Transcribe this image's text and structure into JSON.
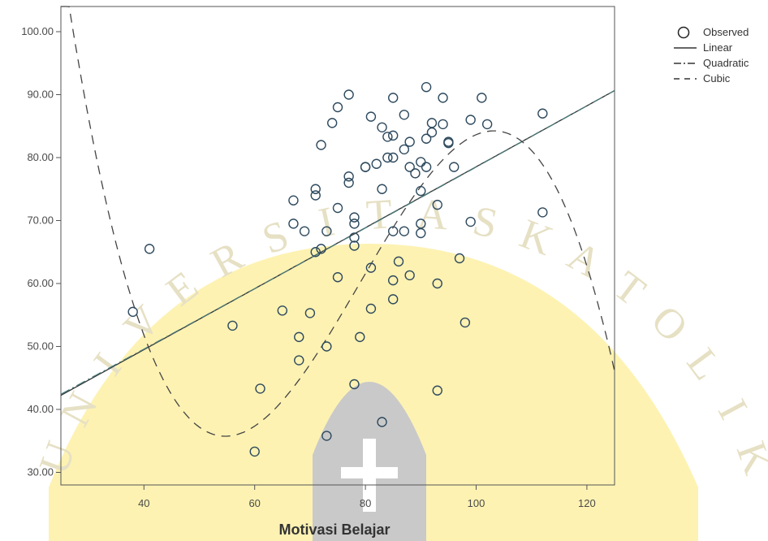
{
  "chart_data": {
    "type": "scatter",
    "xlabel": "Motivasi Belajar",
    "ylabel": "",
    "xlim": [
      25,
      125
    ],
    "ylim": [
      28,
      104
    ],
    "x_ticks": [
      "40",
      "60",
      "80",
      "100",
      "120"
    ],
    "x_tick_values": [
      40,
      60,
      80,
      100,
      120
    ],
    "y_ticks": [
      "30.00",
      "40.00",
      "50.00",
      "60.00",
      "70.00",
      "80.00",
      "90.00",
      "100.00"
    ],
    "y_tick_values": [
      30,
      40,
      50,
      60,
      70,
      80,
      90,
      100
    ],
    "grid": false,
    "legend_position": "top-right outside",
    "legend": [
      {
        "label": "Observed",
        "style": "circle"
      },
      {
        "label": "Linear",
        "style": "solid"
      },
      {
        "label": "Quadratic",
        "style": "dash-dot"
      },
      {
        "label": "Cubic",
        "style": "dashed"
      }
    ],
    "series": [
      {
        "name": "Observed",
        "kind": "points",
        "points": [
          [
            38,
            55.5
          ],
          [
            41,
            65.5
          ],
          [
            56,
            53.3
          ],
          [
            60,
            33.3
          ],
          [
            61,
            43.3
          ],
          [
            65,
            55.7
          ],
          [
            67,
            69.5
          ],
          [
            67,
            73.2
          ],
          [
            68,
            51.5
          ],
          [
            68,
            47.8
          ],
          [
            69,
            68.3
          ],
          [
            70,
            55.3
          ],
          [
            71,
            65
          ],
          [
            71,
            74
          ],
          [
            71,
            75
          ],
          [
            72,
            65.5
          ],
          [
            72,
            82
          ],
          [
            73,
            68.3
          ],
          [
            73,
            50
          ],
          [
            73,
            35.8
          ],
          [
            74,
            85.5
          ],
          [
            75,
            72
          ],
          [
            75,
            61
          ],
          [
            75,
            88
          ],
          [
            77,
            90
          ],
          [
            77,
            76
          ],
          [
            77,
            77
          ],
          [
            78,
            70.5
          ],
          [
            78,
            69.5
          ],
          [
            78,
            67.3
          ],
          [
            78,
            66
          ],
          [
            78,
            44
          ],
          [
            79,
            51.5
          ],
          [
            80,
            78.5
          ],
          [
            80,
            78.5
          ],
          [
            81,
            86.5
          ],
          [
            81,
            62.5
          ],
          [
            81,
            56
          ],
          [
            82,
            79
          ],
          [
            83,
            84.8
          ],
          [
            83,
            75
          ],
          [
            83,
            38
          ],
          [
            84,
            83.3
          ],
          [
            84,
            80
          ],
          [
            85,
            80
          ],
          [
            85,
            83.5
          ],
          [
            85,
            89.5
          ],
          [
            85,
            68.3
          ],
          [
            85,
            60.5
          ],
          [
            85,
            57.5
          ],
          [
            86,
            63.5
          ],
          [
            87,
            81.3
          ],
          [
            87,
            86.8
          ],
          [
            87,
            68.3
          ],
          [
            88,
            78.5
          ],
          [
            88,
            82.5
          ],
          [
            88,
            61.3
          ],
          [
            89,
            77.5
          ],
          [
            90,
            74.7
          ],
          [
            90,
            79.3
          ],
          [
            90,
            69.5
          ],
          [
            90,
            68
          ],
          [
            91,
            78.5
          ],
          [
            91,
            91.2
          ],
          [
            91,
            83
          ],
          [
            92,
            85.5
          ],
          [
            92,
            84
          ],
          [
            93,
            72.5
          ],
          [
            93,
            60
          ],
          [
            93,
            43
          ],
          [
            94,
            89.5
          ],
          [
            94,
            85.3
          ],
          [
            95,
            82.5
          ],
          [
            95,
            82.3
          ],
          [
            96,
            78.5
          ],
          [
            97,
            64
          ],
          [
            98,
            53.8
          ],
          [
            99,
            69.8
          ],
          [
            99,
            86
          ],
          [
            101,
            89.5
          ],
          [
            102,
            85.3
          ],
          [
            112,
            87
          ],
          [
            112,
            71.3
          ]
        ]
      },
      {
        "name": "Linear",
        "kind": "curve",
        "line_style": "solid",
        "coef": [
          30.13,
          0.4841
        ]
      },
      {
        "name": "Quadratic",
        "kind": "curve",
        "line_style": "dashdot",
        "coef": [
          30.5,
          0.475,
          5e-05
        ]
      },
      {
        "name": "Cubic",
        "kind": "curve",
        "line_style": "dashed",
        "coef": [
          359.89,
          -14.3955,
          0.20133,
          -0.00085
        ]
      }
    ]
  },
  "colors": {
    "points": "#2e4a5e",
    "linear": "#333333",
    "quadratic": "#4a7a7a",
    "cubic": "#444444",
    "axis": "#555555",
    "watermark_fill": "#fdf2b2",
    "watermark_dome": "#c9c9c9",
    "watermark_text": "#e6e0c4"
  },
  "watermark": {
    "text": "UNIVERSITAS KATOLIK",
    "description": "university watermark seal"
  }
}
